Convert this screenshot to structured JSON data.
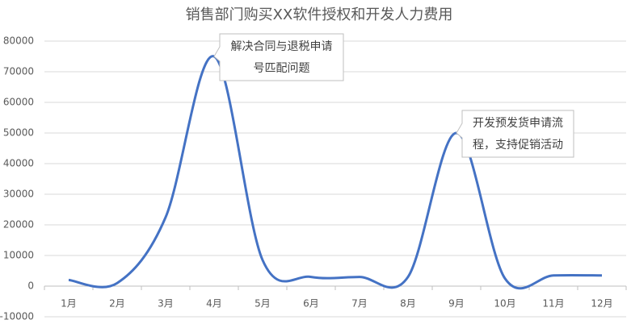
{
  "chart_data": {
    "type": "line",
    "title": "销售部门购买XX软件授权和开发人力费用",
    "categories": [
      "1月",
      "2月",
      "3月",
      "4月",
      "5月",
      "6月",
      "7月",
      "8月",
      "9月",
      "10月",
      "11月",
      "12月"
    ],
    "values": [
      2000,
      1000,
      22500,
      75000,
      8500,
      3000,
      3000,
      3000,
      50000,
      2500,
      3500,
      3500
    ],
    "color": "#4472c4",
    "smooth": true,
    "ylim": [
      -10000,
      80000
    ],
    "yticks": [
      -10000,
      0,
      10000,
      20000,
      30000,
      40000,
      50000,
      60000,
      70000,
      80000
    ],
    "grid": true,
    "annotations": [
      {
        "category": "4月",
        "text": [
          "解决合同与退税申请",
          "号匹配问题"
        ]
      },
      {
        "category": "9月",
        "text": [
          "开发预发货申请流",
          "程，支持促销活动"
        ]
      }
    ]
  }
}
